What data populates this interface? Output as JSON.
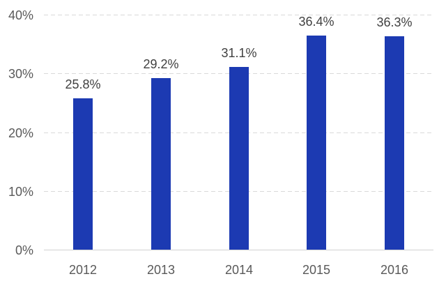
{
  "chart_data": {
    "type": "bar",
    "title": "",
    "xlabel": "",
    "ylabel": "",
    "categories": [
      "2012",
      "2013",
      "2014",
      "2015",
      "2016"
    ],
    "values": [
      25.8,
      29.2,
      31.1,
      36.4,
      36.3
    ],
    "data_labels": [
      "25.8%",
      "29.2%",
      "31.1%",
      "36.4%",
      "36.3%"
    ],
    "ylim": [
      0,
      40
    ],
    "yticks": [
      0,
      10,
      20,
      30,
      40
    ],
    "ytick_labels": [
      "0%",
      "10%",
      "20%",
      "30%",
      "40%"
    ],
    "grid": "horizontal-dashed",
    "legend": "none",
    "colors": {
      "bar": "#1C3AB2",
      "gridline": "#D9D9D9",
      "axis_line": "#D1D1D1",
      "tick_label": "#595959",
      "data_label": "#404040",
      "background": "#FFFFFF"
    }
  }
}
